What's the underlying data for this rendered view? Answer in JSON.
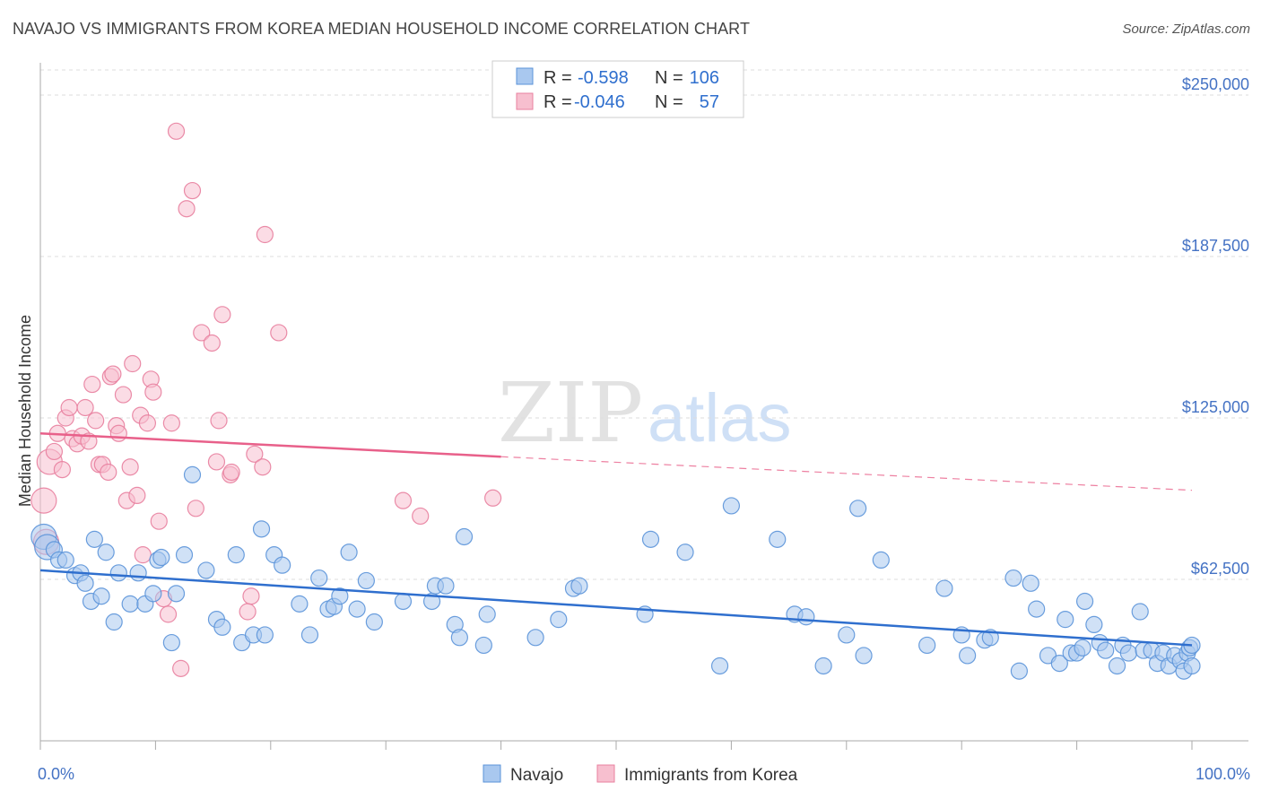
{
  "header": {
    "title": "NAVAJO VS IMMIGRANTS FROM KOREA MEDIAN HOUSEHOLD INCOME CORRELATION CHART",
    "source": "Source: ZipAtlas.com"
  },
  "watermark": {
    "part1": "ZIP",
    "part2": "atlas"
  },
  "colors": {
    "navajo_fill": "#a9c8ef",
    "navajo_stroke": "#5b93d9",
    "navajo_line": "#2f6fce",
    "korea_fill": "#f7bfcf",
    "korea_stroke": "#e8809f",
    "korea_line": "#e8608a",
    "tick_label": "#4472c4",
    "grid": "#dddddd"
  },
  "chart_data": {
    "type": "scatter",
    "title": "NAVAJO VS IMMIGRANTS FROM KOREA MEDIAN HOUSEHOLD INCOME CORRELATION CHART",
    "xlabel": "",
    "ylabel": "Median Household Income",
    "xlim": [
      0,
      100
    ],
    "ylim": [
      0,
      262500
    ],
    "x_tick_labels": [
      "0.0%",
      "100.0%"
    ],
    "y_ticks": [
      62500,
      125000,
      187500,
      250000
    ],
    "y_tick_labels": [
      "$62,500",
      "$125,000",
      "$187,500",
      "$250,000"
    ],
    "grid": true,
    "legend": {
      "position": "top-center",
      "entries": [
        {
          "series": "Navajo",
          "r_label": "R =",
          "r_value": "-0.598",
          "n_label": "N =",
          "n_value": "106"
        },
        {
          "series": "Immigrants from Korea",
          "r_label": "R =",
          "r_value": "-0.046",
          "n_label": "N =",
          "n_value": "57"
        }
      ]
    },
    "series": [
      {
        "name": "Navajo",
        "trend": {
          "x": [
            0,
            100
          ],
          "y": [
            66000,
            37000
          ],
          "style": "solid"
        },
        "points": [
          [
            0.3,
            79000
          ],
          [
            0.6,
            75000
          ],
          [
            1.2,
            74000
          ],
          [
            1.6,
            70000
          ],
          [
            2.2,
            70000
          ],
          [
            3.0,
            64000
          ],
          [
            3.5,
            65000
          ],
          [
            3.9,
            61000
          ],
          [
            4.4,
            54000
          ],
          [
            4.7,
            78000
          ],
          [
            5.3,
            56000
          ],
          [
            5.7,
            73000
          ],
          [
            6.4,
            46000
          ],
          [
            6.8,
            65000
          ],
          [
            7.8,
            53000
          ],
          [
            8.5,
            65000
          ],
          [
            9.1,
            53000
          ],
          [
            9.8,
            57000
          ],
          [
            10.2,
            70000
          ],
          [
            10.5,
            71000
          ],
          [
            11.4,
            38000
          ],
          [
            11.8,
            57000
          ],
          [
            12.5,
            72000
          ],
          [
            13.2,
            103000
          ],
          [
            14.4,
            66000
          ],
          [
            15.3,
            47000
          ],
          [
            15.8,
            44000
          ],
          [
            17.0,
            72000
          ],
          [
            17.5,
            38000
          ],
          [
            18.5,
            41000
          ],
          [
            19.2,
            82000
          ],
          [
            19.5,
            41000
          ],
          [
            20.3,
            72000
          ],
          [
            21.0,
            68000
          ],
          [
            22.5,
            53000
          ],
          [
            23.4,
            41000
          ],
          [
            24.2,
            63000
          ],
          [
            25.0,
            51000
          ],
          [
            25.5,
            52000
          ],
          [
            26.0,
            56000
          ],
          [
            26.8,
            73000
          ],
          [
            27.5,
            51000
          ],
          [
            28.3,
            62000
          ],
          [
            29.0,
            46000
          ],
          [
            31.5,
            54000
          ],
          [
            34.0,
            54000
          ],
          [
            34.3,
            60000
          ],
          [
            35.2,
            60000
          ],
          [
            36.0,
            45000
          ],
          [
            36.4,
            40000
          ],
          [
            36.8,
            79000
          ],
          [
            38.5,
            37000
          ],
          [
            38.8,
            49000
          ],
          [
            43.0,
            40000
          ],
          [
            45.0,
            47000
          ],
          [
            46.3,
            59000
          ],
          [
            46.8,
            60000
          ],
          [
            52.5,
            49000
          ],
          [
            53.0,
            78000
          ],
          [
            56.0,
            73000
          ],
          [
            59.0,
            29000
          ],
          [
            60.0,
            91000
          ],
          [
            64.0,
            78000
          ],
          [
            65.5,
            49000
          ],
          [
            66.5,
            48000
          ],
          [
            68.0,
            29000
          ],
          [
            70.0,
            41000
          ],
          [
            71.0,
            90000
          ],
          [
            71.5,
            33000
          ],
          [
            73.0,
            70000
          ],
          [
            77.0,
            37000
          ],
          [
            78.5,
            59000
          ],
          [
            80.0,
            41000
          ],
          [
            80.5,
            33000
          ],
          [
            82.0,
            39000
          ],
          [
            82.5,
            40000
          ],
          [
            84.5,
            63000
          ],
          [
            85.0,
            27000
          ],
          [
            86.0,
            61000
          ],
          [
            86.5,
            51000
          ],
          [
            87.5,
            33000
          ],
          [
            88.5,
            30000
          ],
          [
            89.0,
            47000
          ],
          [
            89.5,
            34000
          ],
          [
            90.0,
            34000
          ],
          [
            90.5,
            36000
          ],
          [
            90.7,
            54000
          ],
          [
            91.5,
            45000
          ],
          [
            92.0,
            38000
          ],
          [
            92.5,
            35000
          ],
          [
            93.5,
            29000
          ],
          [
            94.0,
            37000
          ],
          [
            94.5,
            34000
          ],
          [
            95.5,
            50000
          ],
          [
            95.8,
            35000
          ],
          [
            96.5,
            35000
          ],
          [
            97.0,
            30000
          ],
          [
            97.5,
            34000
          ],
          [
            98.0,
            29000
          ],
          [
            98.5,
            33000
          ],
          [
            99.0,
            31000
          ],
          [
            99.3,
            27000
          ],
          [
            99.6,
            34000
          ],
          [
            99.8,
            36000
          ],
          [
            100.0,
            37000
          ],
          [
            100.0,
            29000
          ]
        ]
      },
      {
        "name": "Immigrants from Korea",
        "trend": {
          "x": [
            0,
            40,
            100
          ],
          "y": [
            119000,
            110000,
            97000
          ],
          "style": "solid-then-dashed"
        },
        "points": [
          [
            0.3,
            93000
          ],
          [
            0.5,
            77000
          ],
          [
            0.8,
            108000
          ],
          [
            1.2,
            112000
          ],
          [
            1.5,
            119000
          ],
          [
            1.9,
            105000
          ],
          [
            2.2,
            125000
          ],
          [
            2.5,
            129000
          ],
          [
            2.8,
            117000
          ],
          [
            3.2,
            115000
          ],
          [
            3.6,
            118000
          ],
          [
            3.9,
            129000
          ],
          [
            4.2,
            116000
          ],
          [
            4.5,
            138000
          ],
          [
            4.8,
            124000
          ],
          [
            5.1,
            107000
          ],
          [
            5.4,
            107000
          ],
          [
            5.9,
            104000
          ],
          [
            6.1,
            141000
          ],
          [
            6.3,
            142000
          ],
          [
            6.6,
            122000
          ],
          [
            6.8,
            119000
          ],
          [
            7.2,
            134000
          ],
          [
            7.5,
            93000
          ],
          [
            7.8,
            106000
          ],
          [
            8.0,
            146000
          ],
          [
            8.4,
            95000
          ],
          [
            8.7,
            126000
          ],
          [
            8.9,
            72000
          ],
          [
            9.3,
            123000
          ],
          [
            9.6,
            140000
          ],
          [
            9.8,
            135000
          ],
          [
            10.3,
            85000
          ],
          [
            10.7,
            55000
          ],
          [
            11.1,
            49000
          ],
          [
            11.4,
            123000
          ],
          [
            11.8,
            236000
          ],
          [
            12.2,
            28000
          ],
          [
            12.7,
            206000
          ],
          [
            13.2,
            213000
          ],
          [
            13.5,
            90000
          ],
          [
            14.0,
            158000
          ],
          [
            14.9,
            154000
          ],
          [
            15.3,
            108000
          ],
          [
            15.5,
            124000
          ],
          [
            15.8,
            165000
          ],
          [
            16.5,
            103000
          ],
          [
            16.6,
            104000
          ],
          [
            18.0,
            50000
          ],
          [
            18.3,
            56000
          ],
          [
            18.6,
            111000
          ],
          [
            19.3,
            106000
          ],
          [
            19.5,
            196000
          ],
          [
            20.7,
            158000
          ],
          [
            31.5,
            93000
          ],
          [
            33.0,
            87000
          ],
          [
            39.3,
            94000
          ]
        ]
      }
    ]
  },
  "bottom_legend": {
    "navajo": "Navajo",
    "korea": "Immigrants from Korea"
  }
}
